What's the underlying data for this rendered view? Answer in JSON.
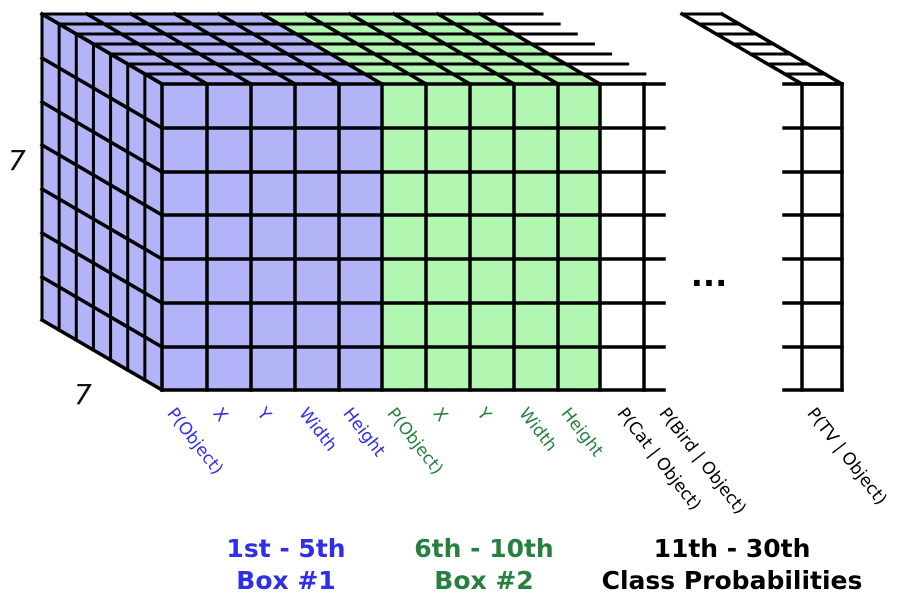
{
  "dimensions": {
    "rows": "7",
    "cols": "7"
  },
  "colors": {
    "box1_fill": "#b3b3f7",
    "box1_text": "#2f2fe8",
    "box2_fill": "#b1f7b1",
    "box2_text": "#27803f",
    "class_fill": "#ffffff",
    "class_text": "#000000",
    "grid_line": "#000000"
  },
  "channel_labels": [
    {
      "text": "P(Object)",
      "group": "box1"
    },
    {
      "text": "X",
      "group": "box1"
    },
    {
      "text": "Y",
      "group": "box1"
    },
    {
      "text": "Width",
      "group": "box1"
    },
    {
      "text": "Height",
      "group": "box1"
    },
    {
      "text": "P(Object)",
      "group": "box2"
    },
    {
      "text": "X",
      "group": "box2"
    },
    {
      "text": "Y",
      "group": "box2"
    },
    {
      "text": "Width",
      "group": "box2"
    },
    {
      "text": "Height",
      "group": "box2"
    },
    {
      "text": "P(Cat | Object)",
      "group": "class"
    },
    {
      "text": "P(Bird | Object)",
      "group": "class"
    },
    {
      "text": "P(TV | Object)",
      "group": "class"
    }
  ],
  "ellipsis": "...",
  "groups": [
    {
      "key": "box1",
      "range": "1st - 5th",
      "title": "Box #1"
    },
    {
      "key": "box2",
      "range": "6th - 10th",
      "title": "Box #2"
    },
    {
      "key": "class",
      "range": "11th - 30th",
      "title": "Class Probabilities"
    }
  ]
}
